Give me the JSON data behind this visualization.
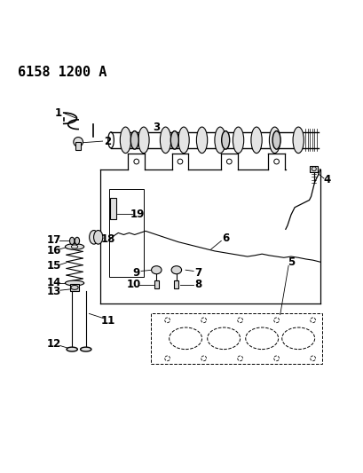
{
  "title": "6158 1200 A",
  "bg_color": "#ffffff",
  "line_color": "#000000",
  "title_fontsize": 11,
  "label_fontsize": 8.5,
  "figsize": [
    4.1,
    5.33
  ],
  "dpi": 100
}
